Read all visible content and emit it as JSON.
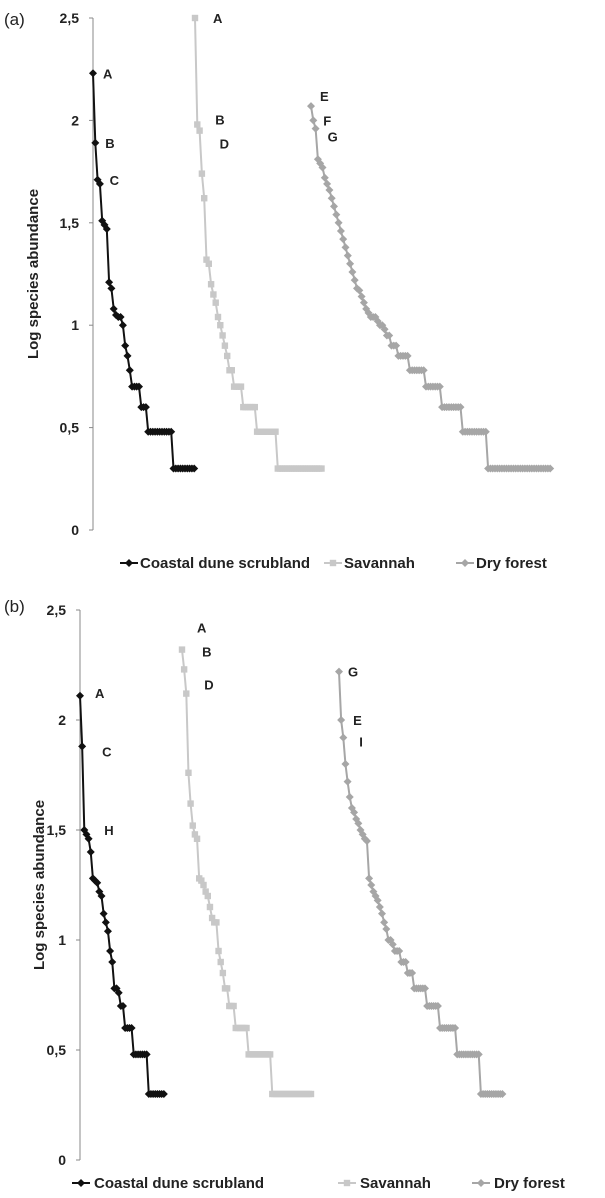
{
  "chart_data": [
    {
      "panel": "(a)",
      "type": "line",
      "ylabel": "Log species abundance",
      "ylim": [
        0,
        2.5
      ],
      "yticks": [
        "0",
        "0,5",
        "1",
        "1,5",
        "2",
        "2,5"
      ],
      "series": [
        {
          "name": "Coastal dune scrubland",
          "color": "#111111",
          "marker": "diamond",
          "values": [
            2.23,
            1.89,
            1.71,
            1.69,
            1.51,
            1.49,
            1.47,
            1.21,
            1.18,
            1.08,
            1.05,
            1.04,
            1.04,
            1.0,
            0.9,
            0.85,
            0.78,
            0.7,
            0.7,
            0.7,
            0.7,
            0.6,
            0.6,
            0.6,
            0.48,
            0.48,
            0.48,
            0.48,
            0.48,
            0.48,
            0.48,
            0.48,
            0.48,
            0.48,
            0.48,
            0.3,
            0.3,
            0.3,
            0.3,
            0.3,
            0.3,
            0.3,
            0.3,
            0.3,
            0.3
          ]
        },
        {
          "name": "Savannah",
          "color": "#c8c8c8",
          "marker": "square",
          "values": [
            2.5,
            1.98,
            1.95,
            1.74,
            1.62,
            1.32,
            1.3,
            1.2,
            1.15,
            1.11,
            1.04,
            1.0,
            0.95,
            0.9,
            0.85,
            0.78,
            0.78,
            0.7,
            0.7,
            0.7,
            0.7,
            0.6,
            0.6,
            0.6,
            0.6,
            0.6,
            0.6,
            0.48,
            0.48,
            0.48,
            0.48,
            0.48,
            0.48,
            0.48,
            0.48,
            0.48,
            0.3,
            0.3,
            0.3,
            0.3,
            0.3,
            0.3,
            0.3,
            0.3,
            0.3,
            0.3,
            0.3,
            0.3,
            0.3,
            0.3,
            0.3,
            0.3,
            0.3,
            0.3,
            0.3,
            0.3
          ]
        },
        {
          "name": "Dry forest",
          "color": "#a6a6a6",
          "marker": "diamond",
          "values": [
            2.07,
            2.0,
            1.96,
            1.81,
            1.79,
            1.77,
            1.72,
            1.69,
            1.66,
            1.62,
            1.58,
            1.54,
            1.5,
            1.46,
            1.42,
            1.38,
            1.34,
            1.3,
            1.26,
            1.22,
            1.18,
            1.17,
            1.14,
            1.11,
            1.08,
            1.06,
            1.04,
            1.04,
            1.04,
            1.02,
            1.0,
            1.0,
            0.98,
            0.95,
            0.95,
            0.9,
            0.9,
            0.9,
            0.85,
            0.85,
            0.85,
            0.85,
            0.85,
            0.78,
            0.78,
            0.78,
            0.78,
            0.78,
            0.78,
            0.78,
            0.7,
            0.7,
            0.7,
            0.7,
            0.7,
            0.7,
            0.7,
            0.6,
            0.6,
            0.6,
            0.6,
            0.6,
            0.6,
            0.6,
            0.6,
            0.6,
            0.48,
            0.48,
            0.48,
            0.48,
            0.48,
            0.48,
            0.48,
            0.48,
            0.48,
            0.48,
            0.48,
            0.3,
            0.3,
            0.3,
            0.3,
            0.3,
            0.3,
            0.3,
            0.3,
            0.3,
            0.3,
            0.3,
            0.3,
            0.3,
            0.3,
            0.3,
            0.3,
            0.3,
            0.3,
            0.3,
            0.3,
            0.3,
            0.3,
            0.3,
            0.3,
            0.3,
            0.3,
            0.3,
            0.3
          ]
        }
      ],
      "annotations": [
        {
          "text": "A",
          "series": 0,
          "index": 0
        },
        {
          "text": "B",
          "series": 0,
          "index": 1
        },
        {
          "text": "C",
          "series": 0,
          "index": 2
        },
        {
          "text": "A",
          "series": 1,
          "index": 0
        },
        {
          "text": "B",
          "series": 1,
          "index": 1
        },
        {
          "text": "D",
          "series": 1,
          "index": 2
        },
        {
          "text": "E",
          "series": 2,
          "index": 0
        },
        {
          "text": "F",
          "series": 2,
          "index": 1
        },
        {
          "text": "G",
          "series": 2,
          "index": 2
        }
      ]
    },
    {
      "panel": "(b)",
      "type": "line",
      "ylabel": "Log species abundance",
      "ylim": [
        0,
        2.5
      ],
      "yticks": [
        "0",
        "0,5",
        "1",
        "1,5",
        "2",
        "2,5"
      ],
      "series": [
        {
          "name": "Coastal dune scrubland",
          "color": "#111111",
          "marker": "diamond",
          "values": [
            2.11,
            1.88,
            1.5,
            1.48,
            1.46,
            1.4,
            1.28,
            1.27,
            1.26,
            1.22,
            1.2,
            1.12,
            1.08,
            1.04,
            0.95,
            0.9,
            0.78,
            0.78,
            0.76,
            0.7,
            0.7,
            0.6,
            0.6,
            0.6,
            0.6,
            0.48,
            0.48,
            0.48,
            0.48,
            0.48,
            0.48,
            0.48,
            0.3,
            0.3,
            0.3,
            0.3,
            0.3,
            0.3,
            0.3,
            0.3
          ]
        },
        {
          "name": "Savannah",
          "color": "#c8c8c8",
          "marker": "square",
          "values": [
            2.32,
            2.23,
            2.12,
            1.76,
            1.62,
            1.52,
            1.48,
            1.46,
            1.28,
            1.27,
            1.25,
            1.22,
            1.2,
            1.15,
            1.1,
            1.08,
            1.08,
            0.95,
            0.9,
            0.85,
            0.78,
            0.78,
            0.7,
            0.7,
            0.7,
            0.6,
            0.6,
            0.6,
            0.6,
            0.6,
            0.6,
            0.48,
            0.48,
            0.48,
            0.48,
            0.48,
            0.48,
            0.48,
            0.48,
            0.48,
            0.48,
            0.48,
            0.3,
            0.3,
            0.3,
            0.3,
            0.3,
            0.3,
            0.3,
            0.3,
            0.3,
            0.3,
            0.3,
            0.3,
            0.3,
            0.3,
            0.3,
            0.3,
            0.3,
            0.3,
            0.3
          ]
        },
        {
          "name": "Dry forest",
          "color": "#a6a6a6",
          "marker": "diamond",
          "values": [
            2.22,
            2.0,
            1.92,
            1.8,
            1.72,
            1.65,
            1.6,
            1.58,
            1.55,
            1.53,
            1.5,
            1.48,
            1.46,
            1.45,
            1.28,
            1.25,
            1.22,
            1.2,
            1.18,
            1.15,
            1.12,
            1.08,
            1.05,
            1.0,
            1.0,
            0.98,
            0.95,
            0.95,
            0.95,
            0.9,
            0.9,
            0.9,
            0.85,
            0.85,
            0.85,
            0.78,
            0.78,
            0.78,
            0.78,
            0.78,
            0.78,
            0.7,
            0.7,
            0.7,
            0.7,
            0.7,
            0.7,
            0.6,
            0.6,
            0.6,
            0.6,
            0.6,
            0.6,
            0.6,
            0.6,
            0.48,
            0.48,
            0.48,
            0.48,
            0.48,
            0.48,
            0.48,
            0.48,
            0.48,
            0.48,
            0.48,
            0.3,
            0.3,
            0.3,
            0.3,
            0.3,
            0.3,
            0.3,
            0.3,
            0.3,
            0.3,
            0.3
          ]
        }
      ],
      "annotations": [
        {
          "text": "A",
          "series": 0,
          "index": 0
        },
        {
          "text": "C",
          "series": 0,
          "index": 1
        },
        {
          "text": "H",
          "series": 0,
          "index": 2
        },
        {
          "text": "A",
          "series": 1,
          "index": 0
        },
        {
          "text": "B",
          "series": 1,
          "index": 1
        },
        {
          "text": "D",
          "series": 1,
          "index": 2
        },
        {
          "text": "G",
          "series": 2,
          "index": 0
        },
        {
          "text": "E",
          "series": 2,
          "index": 1
        },
        {
          "text": "I",
          "series": 2,
          "index": 2
        }
      ]
    }
  ]
}
